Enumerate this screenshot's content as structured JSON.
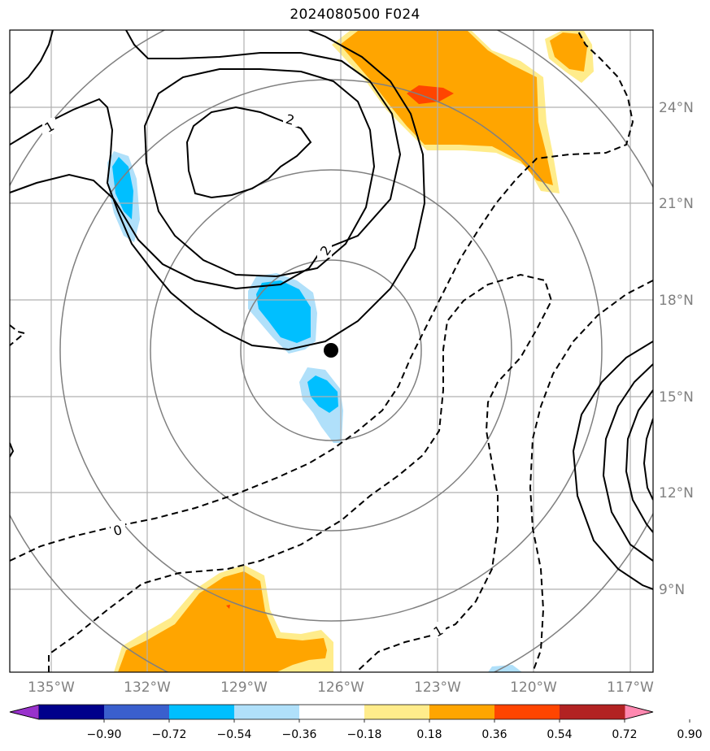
{
  "title": "2024080500 F024",
  "map": {
    "lon_range": [
      -136,
      -116.5
    ],
    "lat_range": [
      6.5,
      26.5
    ],
    "lon_ticks": [
      "135°W",
      "132°W",
      "129°W",
      "126°W",
      "123°W",
      "120°W",
      "117°W"
    ],
    "lat_ticks": [
      "24°N",
      "21°N",
      "18°N",
      "15°N",
      "12°N",
      "9°N"
    ],
    "center_marker": {
      "lon": -126.0,
      "lat": 16.4
    },
    "grid": true,
    "range_rings": 4
  },
  "contour_labels": [
    {
      "text": "1"
    },
    {
      "text": "2"
    },
    {
      "text": "2"
    },
    {
      "text": "0"
    },
    {
      "text": "1"
    }
  ],
  "colorbar": {
    "colors": [
      "#9932cc",
      "#00008b",
      "#3a5fcd",
      "#00bfff",
      "#b0e0fa",
      "#ffffff",
      "#ffec8b",
      "#ffa500",
      "#ff4500",
      "#b22222",
      "#ff88b0"
    ],
    "tick_labels": [
      "−0.90",
      "−0.72",
      "−0.54",
      "−0.36",
      "−0.18",
      "0.18",
      "0.36",
      "0.54",
      "0.72",
      "0.90"
    ],
    "extend": "both"
  },
  "legend_colors": {
    "light_yellow": "#ffec8b",
    "orange": "#ffa500",
    "red_orange": "#ff4500",
    "light_blue": "#b0e0fa",
    "blue": "#00bfff"
  }
}
